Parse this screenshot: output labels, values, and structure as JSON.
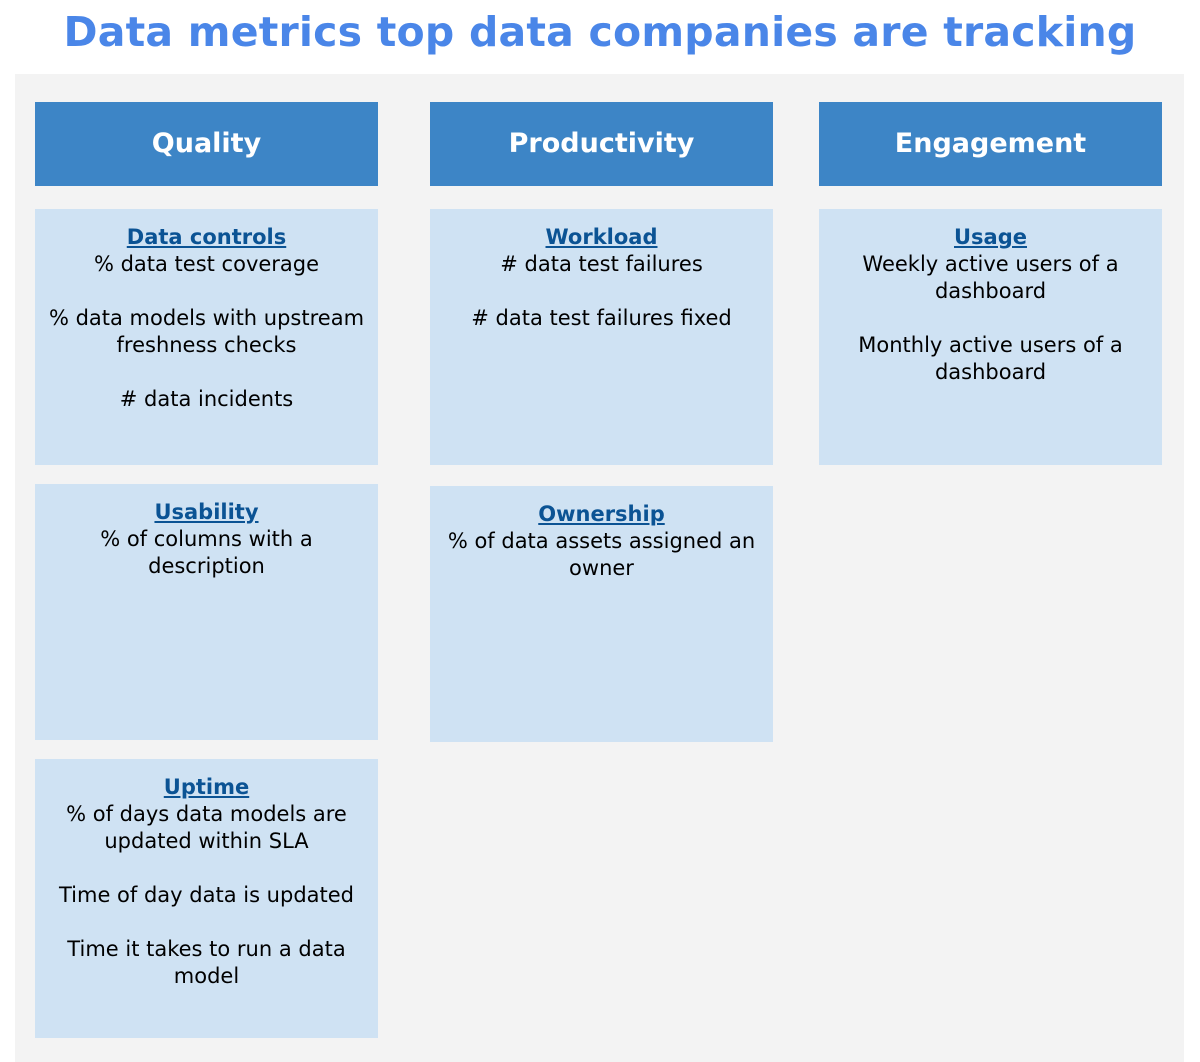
{
  "title": "Data metrics top data companies are tracking",
  "columns": [
    {
      "header": "Quality",
      "cards": [
        {
          "title": "Data controls",
          "items": [
            "% data test coverage",
            "% data models with upstream freshness checks",
            "# data incidents"
          ]
        },
        {
          "title": "Usability",
          "items": [
            "% of columns with a description"
          ]
        },
        {
          "title": "Uptime",
          "items": [
            "% of days data models are updated within SLA",
            "Time of day data is updated",
            "Time it takes to run a data model"
          ]
        }
      ]
    },
    {
      "header": "Productivity",
      "cards": [
        {
          "title": "Workload",
          "items": [
            "# data test failures",
            "# data test failures fixed"
          ]
        },
        {
          "title": "Ownership",
          "items": [
            "% of data assets assigned an owner"
          ]
        }
      ]
    },
    {
      "header": "Engagement",
      "cards": [
        {
          "title": "Usage",
          "items": [
            "Weekly active users of a dashboard",
            "Monthly active users of a dashboard"
          ]
        }
      ]
    }
  ],
  "colors": {
    "title": "#4a86e8",
    "header_bg": "#3d85c6",
    "card_bg": "#cfe2f3",
    "card_title": "#0b5394",
    "panel_bg": "#f3f3f3"
  }
}
